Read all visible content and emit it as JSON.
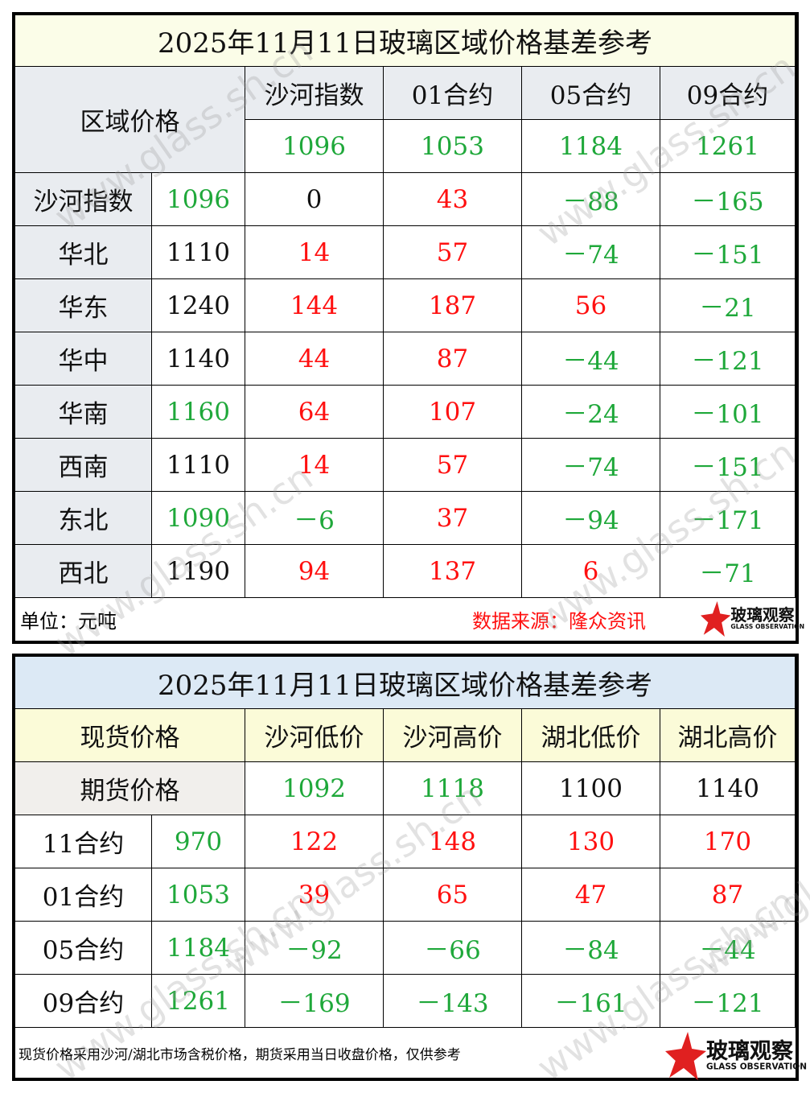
{
  "colors": {
    "green": "#1fa83a",
    "red": "#ff1010",
    "black": "#111111",
    "header_gray": "#e9ecf0",
    "title1_bg": "#fbfde8",
    "title2_bg": "#dce9f5",
    "header2_bg": "#fbfbd8",
    "futures_bg": "#f1efec"
  },
  "table1": {
    "title": "2025年11月11日玻璃区域价格基差参考",
    "corner": "区域价格",
    "columns": [
      {
        "label": "沙河指数",
        "value": "1096",
        "color": "green"
      },
      {
        "label": "01合约",
        "value": "1053",
        "color": "green"
      },
      {
        "label": "05合约",
        "value": "1184",
        "color": "green"
      },
      {
        "label": "09合约",
        "value": "1261",
        "color": "green"
      }
    ],
    "rows": [
      {
        "region": "沙河指数",
        "price": "1096",
        "price_color": "green",
        "cells": [
          [
            "0",
            "black"
          ],
          [
            "43",
            "red"
          ],
          [
            "-88",
            "green"
          ],
          [
            "-165",
            "green"
          ]
        ]
      },
      {
        "region": "华北",
        "price": "1110",
        "price_color": "black",
        "cells": [
          [
            "14",
            "red"
          ],
          [
            "57",
            "red"
          ],
          [
            "-74",
            "green"
          ],
          [
            "-151",
            "green"
          ]
        ]
      },
      {
        "region": "华东",
        "price": "1240",
        "price_color": "black",
        "cells": [
          [
            "144",
            "red"
          ],
          [
            "187",
            "red"
          ],
          [
            "56",
            "red"
          ],
          [
            "-21",
            "green"
          ]
        ]
      },
      {
        "region": "华中",
        "price": "1140",
        "price_color": "black",
        "cells": [
          [
            "44",
            "red"
          ],
          [
            "87",
            "red"
          ],
          [
            "-44",
            "green"
          ],
          [
            "-121",
            "green"
          ]
        ]
      },
      {
        "region": "华南",
        "price": "1160",
        "price_color": "green",
        "cells": [
          [
            "64",
            "red"
          ],
          [
            "107",
            "red"
          ],
          [
            "-24",
            "green"
          ],
          [
            "-101",
            "green"
          ]
        ]
      },
      {
        "region": "西南",
        "price": "1110",
        "price_color": "black",
        "cells": [
          [
            "14",
            "red"
          ],
          [
            "57",
            "red"
          ],
          [
            "-74",
            "green"
          ],
          [
            "-151",
            "green"
          ]
        ]
      },
      {
        "region": "东北",
        "price": "1090",
        "price_color": "green",
        "cells": [
          [
            "-6",
            "green"
          ],
          [
            "37",
            "red"
          ],
          [
            "-94",
            "green"
          ],
          [
            "-171",
            "green"
          ]
        ]
      },
      {
        "region": "西北",
        "price": "1190",
        "price_color": "black",
        "cells": [
          [
            "94",
            "red"
          ],
          [
            "137",
            "red"
          ],
          [
            "6",
            "red"
          ],
          [
            "-71",
            "green"
          ]
        ]
      }
    ],
    "unit": "单位：元吨",
    "source": "数据来源：隆众资讯"
  },
  "table2": {
    "title": "2025年11月11日玻璃区域价格基差参考",
    "spot_label": "现货价格",
    "futures_label": "期货价格",
    "columns": [
      {
        "label": "沙河低价",
        "value": "1092",
        "color": "green"
      },
      {
        "label": "沙河高价",
        "value": "1118",
        "color": "green"
      },
      {
        "label": "湖北低价",
        "value": "1100",
        "color": "black"
      },
      {
        "label": "湖北高价",
        "value": "1140",
        "color": "black"
      }
    ],
    "rows": [
      {
        "contract": "11合约",
        "price": "970",
        "cells": [
          [
            "122",
            "red"
          ],
          [
            "148",
            "red"
          ],
          [
            "130",
            "red"
          ],
          [
            "170",
            "red"
          ]
        ]
      },
      {
        "contract": "01合约",
        "price": "1053",
        "cells": [
          [
            "39",
            "red"
          ],
          [
            "65",
            "red"
          ],
          [
            "47",
            "red"
          ],
          [
            "87",
            "red"
          ]
        ]
      },
      {
        "contract": "05合约",
        "price": "1184",
        "cells": [
          [
            "-92",
            "green"
          ],
          [
            "-66",
            "green"
          ],
          [
            "-84",
            "green"
          ],
          [
            "-44",
            "green"
          ]
        ]
      },
      {
        "contract": "09合约",
        "price": "1261",
        "cells": [
          [
            "-169",
            "green"
          ],
          [
            "-143",
            "green"
          ],
          [
            "-161",
            "green"
          ],
          [
            "-121",
            "green"
          ]
        ]
      }
    ],
    "note": "现货价格采用沙河/湖北市场含税价格，期货采用当日收盘价格，仅供参考"
  },
  "logo": {
    "name": "玻璃观察",
    "sub": "GLASS OBSERVATION"
  },
  "watermark": "www.glass.sh.cn"
}
